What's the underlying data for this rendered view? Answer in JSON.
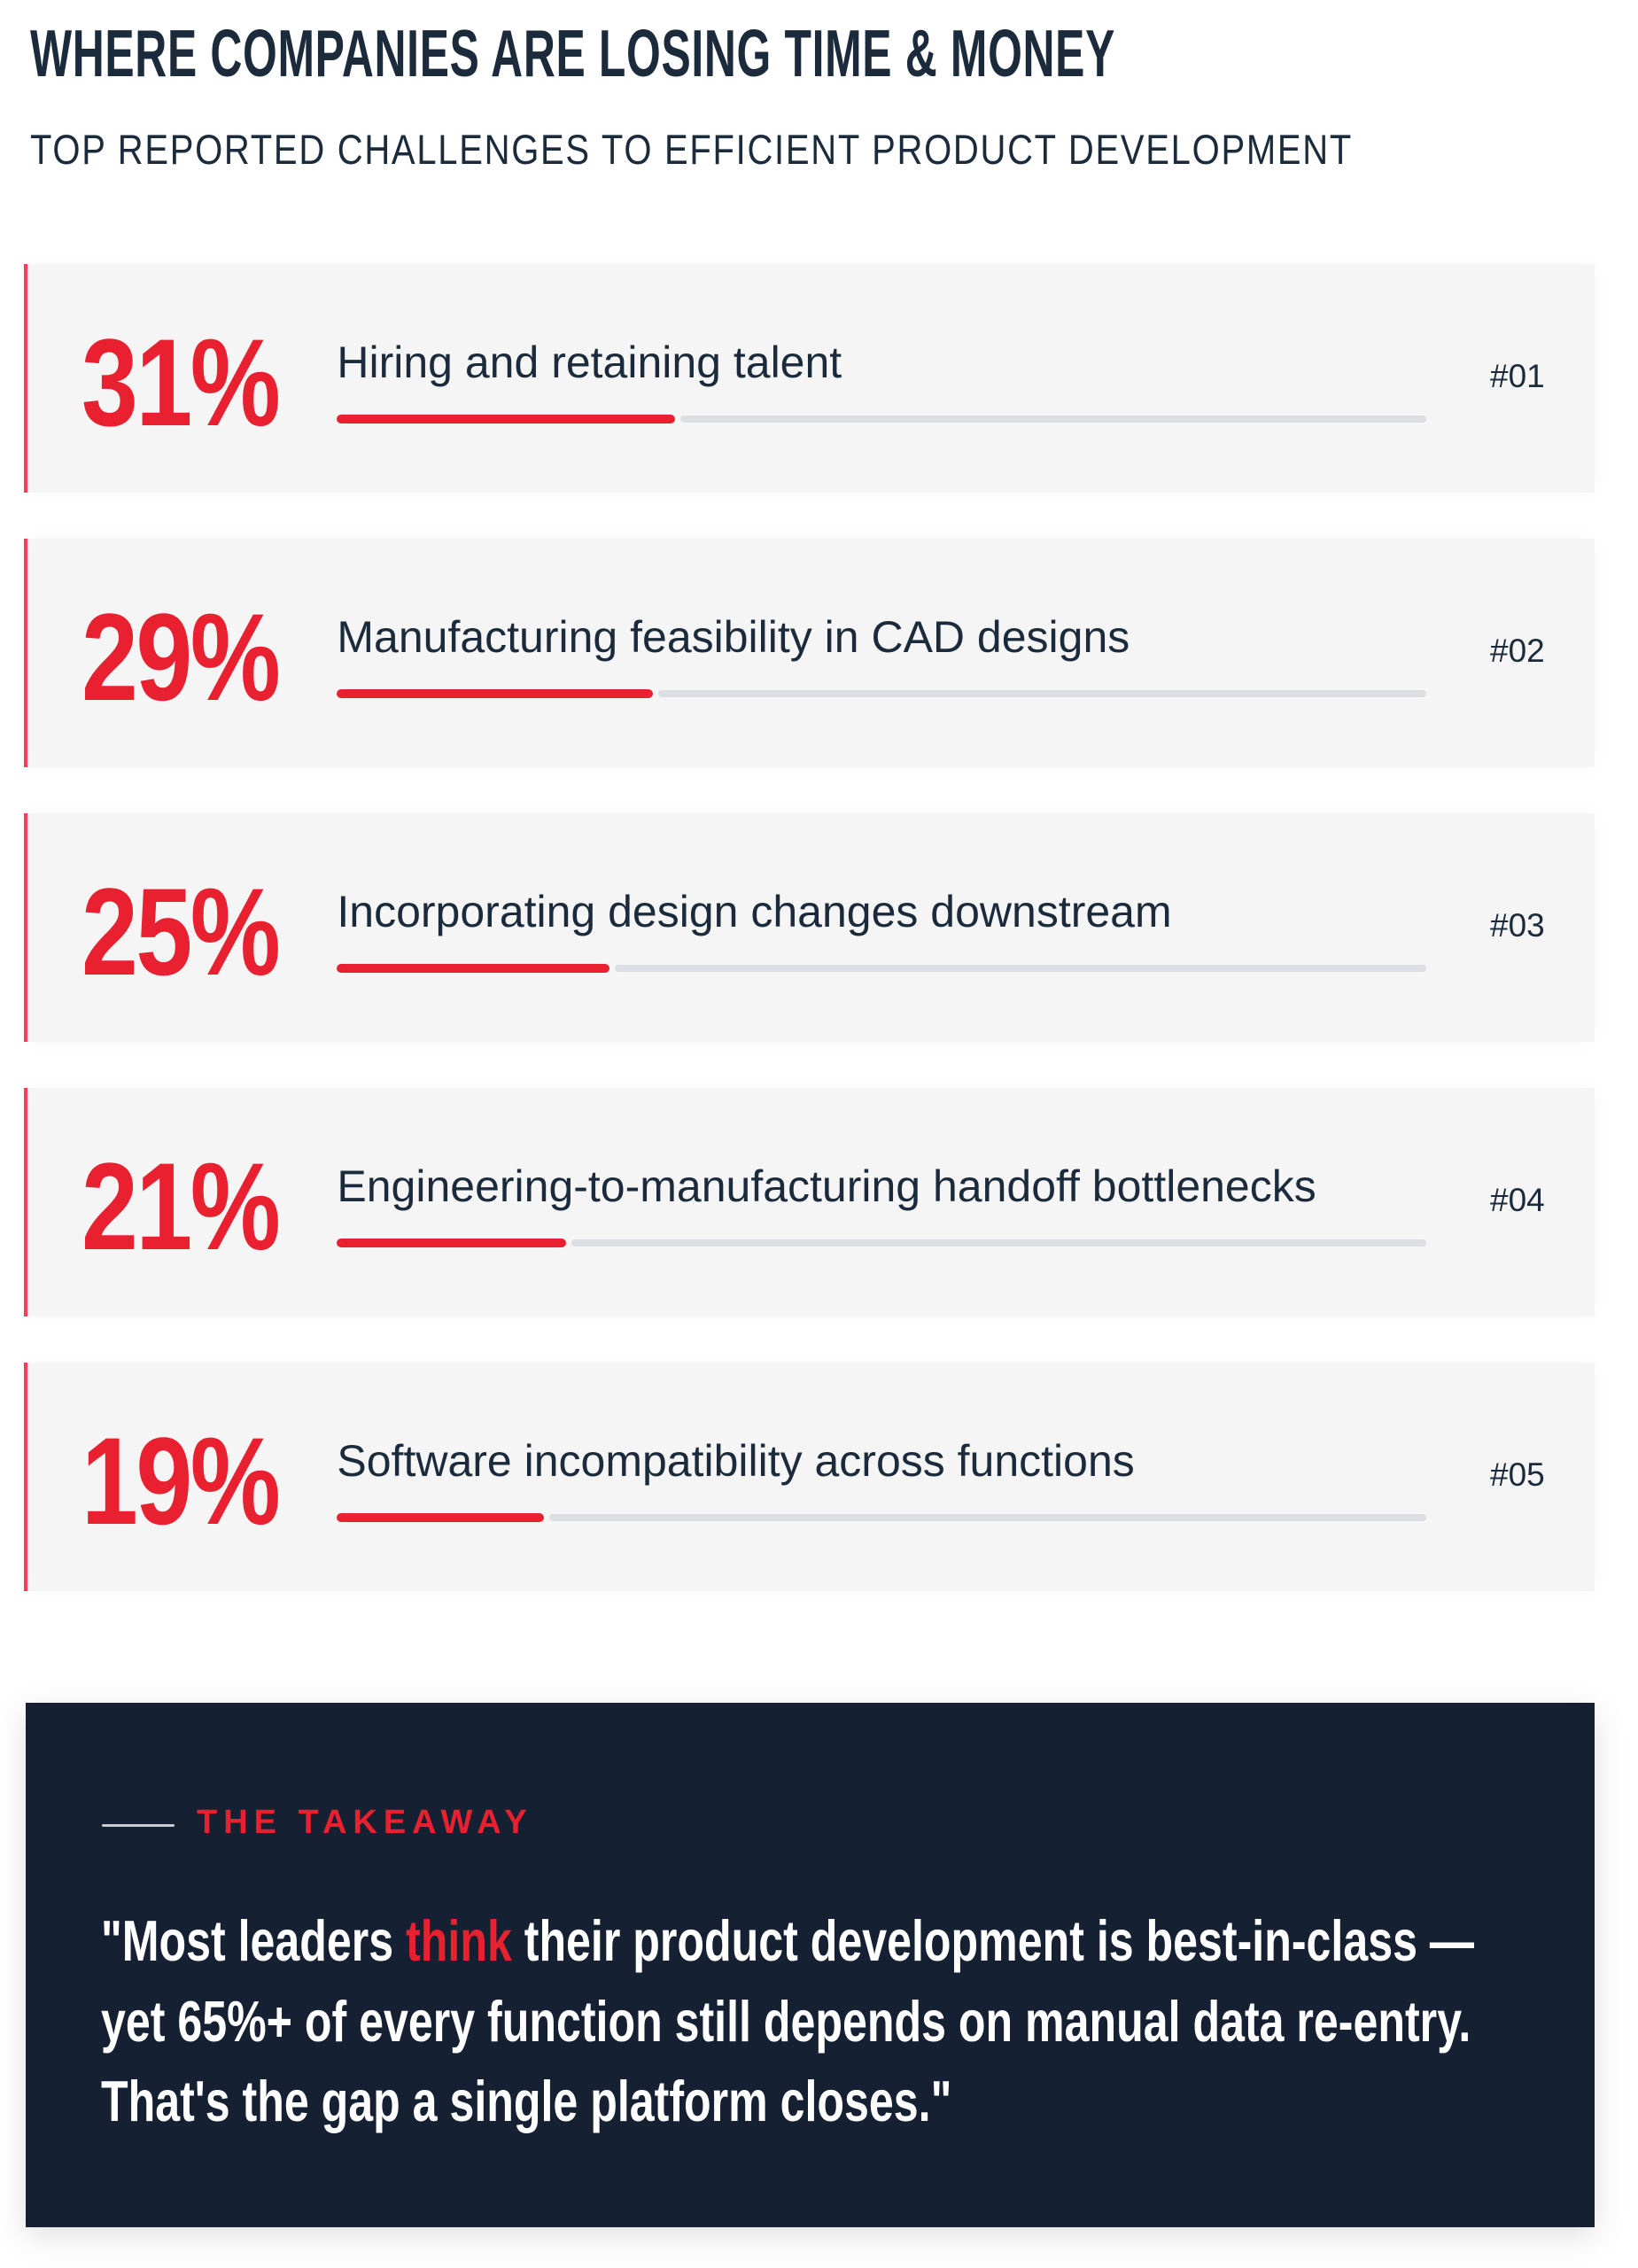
{
  "colors": {
    "accent": "#e8202f",
    "text": "#1b2b3b",
    "panel": "#152033",
    "card_border": "#ff3b5c",
    "track": "#dcdee4"
  },
  "chart_data": {
    "type": "bar",
    "orientation": "horizontal",
    "title": "WHERE COMPANIES ARE LOSING TIME & MONEY",
    "subtitle": "TOP REPORTED CHALLENGES TO EFFICIENT PRODUCT DEVELOPMENT",
    "categories": [
      "Hiring and retaining talent",
      "Manufacturing feasibility in CAD designs",
      "Incorporating design changes downstream",
      "Engineering-to-manufacturing handoff bottlenecks",
      "Software incompatibility across functions"
    ],
    "values": [
      31,
      29,
      25,
      21,
      19
    ],
    "value_labels": [
      "31%",
      "29%",
      "25%",
      "21%",
      "19%"
    ],
    "ranks": [
      "#01",
      "#02",
      "#03",
      "#04",
      "#05"
    ],
    "unit": "%",
    "xlim": [
      0,
      100
    ],
    "grid": false,
    "legend": "none"
  },
  "takeaway": {
    "label": "THE TAKEAWAY",
    "line1_before": "\"Most leaders ",
    "line1_highlight": "think",
    "line1_after": " their product development is best-in-class —",
    "line2": "yet 65%+ of every function still depends on manual data re-entry.",
    "line3": "That's the gap a single platform closes.\""
  }
}
